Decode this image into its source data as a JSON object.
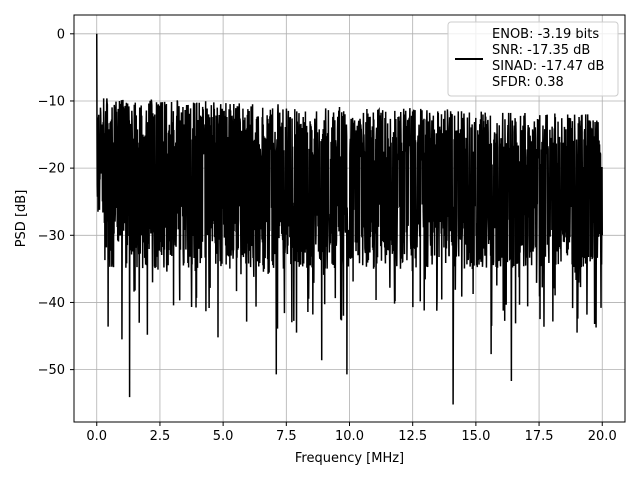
{
  "chart_data": {
    "type": "line",
    "xlabel": "Frequency [MHz]",
    "ylabel": "PSD [dB]",
    "xlim": [
      -0.9,
      20.9
    ],
    "ylim": [
      -57.8,
      2.8
    ],
    "xticks": [
      0.0,
      2.5,
      5.0,
      7.5,
      10.0,
      12.5,
      15.0,
      17.5,
      20.0
    ],
    "xtick_labels": [
      "0.0",
      "2.5",
      "5.0",
      "7.5",
      "10.0",
      "12.5",
      "15.0",
      "17.5",
      "20.0"
    ],
    "yticks": [
      0,
      -10,
      -20,
      -30,
      -40,
      -50
    ],
    "ytick_labels": [
      "0",
      "−10",
      "−20",
      "−30",
      "−40",
      "−50"
    ],
    "grid": true,
    "legend_position": "top-right",
    "series": [
      {
        "name": "ENOB: -3.19 bits\nSNR: -17.35 dB\nSINAD: -17.47 dB\nSFDR: 0.38",
        "legend_lines": [
          "ENOB: -3.19 bits",
          "SNR: -17.35 dB",
          "SINAD: -17.47 dB",
          "SFDR: 0.38"
        ],
        "color": "#000000",
        "x_start": 0.0,
        "x_end": 20.0,
        "points_count": 2048,
        "envelope_max_db": 0.0,
        "envelope_upper_db_low_freq": -9.5,
        "envelope_upper_db_high_freq": -12.0,
        "envelope_lower_db_typical": -35.0,
        "notable_points": [
          {
            "x": 0.0,
            "y": 0.0
          },
          {
            "x": 0.05,
            "y": -26.5
          },
          {
            "x": 0.15,
            "y": -11.0
          },
          {
            "x": 0.45,
            "y": -43.6
          },
          {
            "x": 1.0,
            "y": -45.5
          },
          {
            "x": 1.3,
            "y": -54.1
          },
          {
            "x": 2.0,
            "y": -44.8
          },
          {
            "x": 4.8,
            "y": -45.2
          },
          {
            "x": 7.1,
            "y": -50.7
          },
          {
            "x": 7.9,
            "y": -44.5
          },
          {
            "x": 8.9,
            "y": -48.6
          },
          {
            "x": 9.9,
            "y": -50.7
          },
          {
            "x": 14.1,
            "y": -55.2
          },
          {
            "x": 15.6,
            "y": -47.7
          },
          {
            "x": 16.4,
            "y": -51.7
          },
          {
            "x": 19.0,
            "y": -44.5
          },
          {
            "x": 20.0,
            "y": -30.0
          }
        ]
      }
    ]
  }
}
